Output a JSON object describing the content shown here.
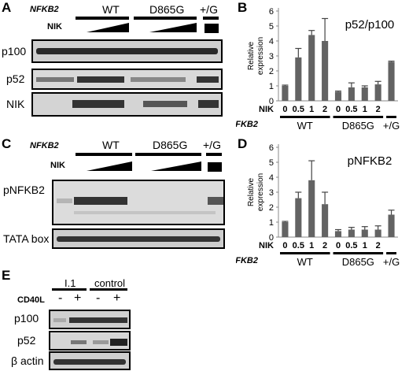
{
  "panels": {
    "A": {
      "label": "A",
      "header_label": "NFKB2",
      "groups": [
        "WT",
        "D865G",
        "+/G"
      ],
      "treatment_label": "NIK",
      "rows": [
        "p100",
        "p52",
        "NIK"
      ]
    },
    "B": {
      "label": "B",
      "chart_data": {
        "type": "bar",
        "title": "p52/p100",
        "ylabel": "Relative expression",
        "ylim": [
          0,
          6
        ],
        "yticks": [
          0,
          1,
          2,
          3,
          4,
          5,
          6
        ],
        "categories": [
          "0",
          "0.5",
          "1",
          "2",
          "0",
          "0.5",
          "1",
          "2",
          ""
        ],
        "values": [
          1.0,
          2.9,
          4.4,
          4.0,
          0.6,
          0.9,
          0.9,
          1.1,
          2.6
        ],
        "errors": [
          0.05,
          0.6,
          0.3,
          1.5,
          0.05,
          0.3,
          0.1,
          0.2,
          0.05
        ],
        "x_row_label": "NIK",
        "group_row_label": "NFKB2",
        "groups": [
          "WT",
          "D865G",
          "+/G"
        ],
        "color": "#636363"
      }
    },
    "C": {
      "label": "C",
      "header_label": "NFKB2",
      "groups": [
        "WT",
        "D865G",
        "+/G"
      ],
      "treatment_label": "NIK",
      "rows": [
        "pNFKB2",
        "TATA box"
      ]
    },
    "D": {
      "label": "D",
      "chart_data": {
        "type": "bar",
        "title": "pNFKB2",
        "ylabel": "Relative expression",
        "ylim": [
          0,
          6
        ],
        "yticks": [
          0,
          1,
          2,
          3,
          4,
          5,
          6
        ],
        "categories": [
          "0",
          "0.5",
          "1",
          "2",
          "0",
          "0.5",
          "1",
          "2",
          ""
        ],
        "values": [
          1.0,
          2.6,
          3.8,
          2.2,
          0.4,
          0.5,
          0.5,
          0.5,
          1.5
        ],
        "errors": [
          0.05,
          0.4,
          1.3,
          0.8,
          0.1,
          0.15,
          0.2,
          0.25,
          0.3
        ],
        "x_row_label": "NIK",
        "group_row_label": "NFKB2",
        "groups": [
          "WT",
          "D865G",
          "+/G"
        ],
        "color": "#636363"
      }
    },
    "E": {
      "label": "E",
      "groups": [
        "I.1",
        "control"
      ],
      "treatment_label": "CD40L",
      "lane_signs": [
        "-",
        "+",
        "-",
        "+"
      ],
      "rows": [
        "p100",
        "p52",
        "β actin"
      ]
    }
  }
}
